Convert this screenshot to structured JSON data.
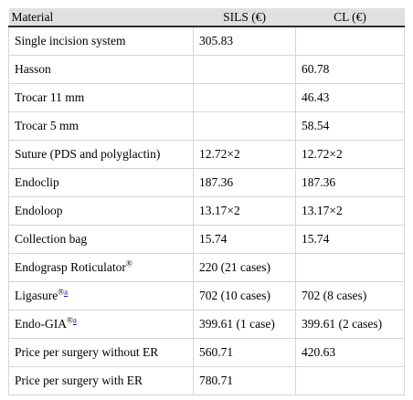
{
  "header": {
    "material": "Material",
    "sils": "SILS (€)",
    "cl": "CL (€)"
  },
  "rows": [
    {
      "material": "Single incision system",
      "sup": "",
      "note": "",
      "sils": "305.83",
      "cl": ""
    },
    {
      "material": "Hasson",
      "sup": "",
      "note": "",
      "sils": "",
      "cl": "60.78"
    },
    {
      "material": "Trocar 11 mm",
      "sup": "",
      "note": "",
      "sils": "",
      "cl": "46.43"
    },
    {
      "material": "Trocar 5 mm",
      "sup": "",
      "note": "",
      "sils": "",
      "cl": "58.54"
    },
    {
      "material": "Suture (PDS and polyglactin)",
      "sup": "",
      "note": "",
      "sils": "12.72×2",
      "cl": "12.72×2"
    },
    {
      "material": "Endoclip",
      "sup": "",
      "note": "",
      "sils": "187.36",
      "cl": "187.36"
    },
    {
      "material": "Endoloop",
      "sup": "",
      "note": "",
      "sils": "13.17×2",
      "cl": "13.17×2"
    },
    {
      "material": "Collection bag",
      "sup": "",
      "note": "",
      "sils": "15.74",
      "cl": "15.74"
    },
    {
      "material": "Endograsp Roticulator",
      "sup": "®",
      "note": "",
      "sils": "220 (21 cases)",
      "cl": ""
    },
    {
      "material": "Ligasure",
      "sup": "®",
      "note": "a",
      "sils": "702 (10 cases)",
      "cl": "702 (8 cases)"
    },
    {
      "material": "Endo-GIA",
      "sup": "®",
      "note": "a",
      "sils": "399.61 (1 case)",
      "cl": "399.61 (2 cases)"
    },
    {
      "material": "Price per surgery without ER",
      "sup": "",
      "note": "",
      "sils": "560.71",
      "cl": "420.63"
    },
    {
      "material": "Price per surgery with ER",
      "sup": "",
      "note": "",
      "sils": "780.71",
      "cl": ""
    }
  ]
}
